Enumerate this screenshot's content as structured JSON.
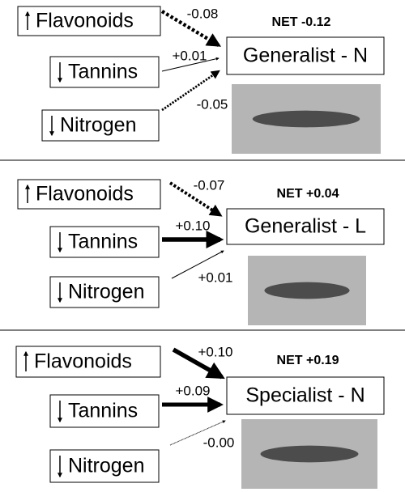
{
  "panels": [
    {
      "net": "NET -0.12",
      "target": "Generalist - N",
      "nodes": [
        {
          "label": "Flavonoids",
          "effect": "-0.08"
        },
        {
          "label": "Tannins",
          "effect": "+0.01"
        },
        {
          "label": "Nitrogen",
          "effect": "-0.05"
        }
      ]
    },
    {
      "net": "NET +0.04",
      "target": "Generalist - L",
      "nodes": [
        {
          "label": "Flavonoids",
          "effect": "-0.07"
        },
        {
          "label": "Tannins",
          "effect": "+0.10"
        },
        {
          "label": "Nitrogen",
          "effect": "+0.01"
        }
      ]
    },
    {
      "net": "NET +0.19",
      "target": "Specialist - N",
      "nodes": [
        {
          "label": "Flavonoids",
          "effect": "+0.10"
        },
        {
          "label": "Tannins",
          "effect": "+0.09"
        },
        {
          "label": "Nitrogen",
          "effect": "-0.00"
        }
      ]
    }
  ]
}
